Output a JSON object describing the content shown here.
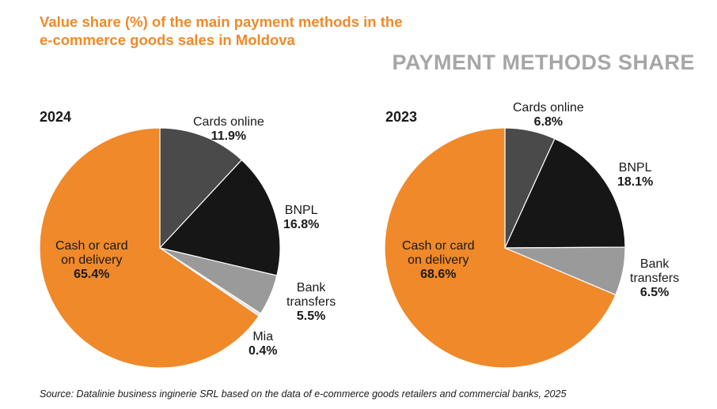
{
  "title_line1": "Value share (%) of the main payment methods in the",
  "title_line2": "e-commerce goods sales in Moldova",
  "section_title": "PAYMENT METHODS SHARE",
  "source": "Source: Datalinie business inginerie SRL based on the data of e-commerce goods retailers and commercial banks, 2025",
  "chart_data": [
    {
      "type": "pie",
      "title": "2024",
      "slices": [
        {
          "name": "Cards online",
          "value": 11.9,
          "label": "11.9%",
          "color": "#4a4a4a"
        },
        {
          "name": "BNPL",
          "value": 16.8,
          "label": "16.8%",
          "color": "#161616"
        },
        {
          "name": "Bank transfers",
          "value": 5.5,
          "label": "5.5%",
          "color": "#9a9a9a"
        },
        {
          "name": "Mia",
          "value": 0.4,
          "label": "0.4%",
          "color": "#e2e2e2"
        },
        {
          "name": "Cash or card on delivery",
          "value": 65.4,
          "label": "65.4%",
          "color": "#f0892a"
        }
      ]
    },
    {
      "type": "pie",
      "title": "2023",
      "slices": [
        {
          "name": "Cards online",
          "value": 6.8,
          "label": "6.8%",
          "color": "#4a4a4a"
        },
        {
          "name": "BNPL",
          "value": 18.1,
          "label": "18.1%",
          "color": "#161616"
        },
        {
          "name": "Bank transfers",
          "value": 6.5,
          "label": "6.5%",
          "color": "#9a9a9a"
        },
        {
          "name": "Cash or card on delivery",
          "value": 68.6,
          "label": "68.6%",
          "color": "#f0892a"
        }
      ]
    }
  ],
  "labels_2024": {
    "cards_name": "Cards online",
    "cards_value": "11.9%",
    "bnpl_name": "BNPL",
    "bnpl_value": "16.8%",
    "bank_name1": "Bank",
    "bank_name2": "transfers",
    "bank_value": "5.5%",
    "mia_name": "Mia",
    "mia_value": "0.4%",
    "cash_name1": "Cash or card",
    "cash_name2": "on delivery",
    "cash_value": "65.4%"
  },
  "labels_2023": {
    "cards_name": "Cards online",
    "cards_value": "6.8%",
    "bnpl_name": "BNPL",
    "bnpl_value": "18.1%",
    "bank_name1": "Bank",
    "bank_name2": "transfers",
    "bank_value": "6.5%",
    "cash_name1": "Cash or card",
    "cash_name2": "on delivery",
    "cash_value": "68.6%"
  }
}
